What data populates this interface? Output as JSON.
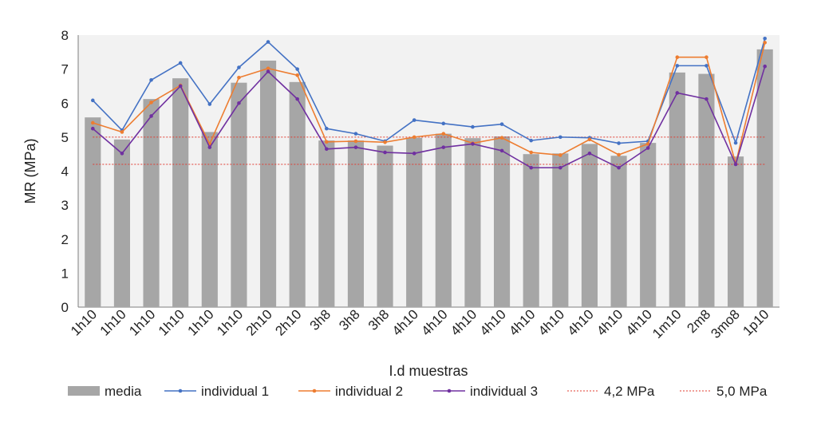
{
  "chart_data": {
    "type": "bar",
    "title": "",
    "xlabel": "I.d  muestras",
    "ylabel": "MR (MPa)",
    "ylim": [
      0,
      8
    ],
    "yticks": [
      0,
      1,
      2,
      3,
      4,
      5,
      6,
      7,
      8
    ],
    "grid": false,
    "legend_position": "bottom",
    "categories": [
      "1h10",
      "1h10",
      "1h10",
      "1h10",
      "1h10",
      "1h10",
      "2h10",
      "2h10",
      "3h8",
      "3h8",
      "3h8",
      "4h10",
      "4h10",
      "4h10",
      "4h10",
      "4h10",
      "4h10",
      "4h10",
      "4h10",
      "4h10",
      "1m10",
      "2m8",
      "3mo8",
      "1p10"
    ],
    "bar_series": {
      "name": "media",
      "color": "#a6a6a6",
      "values": [
        5.58,
        4.93,
        6.12,
        6.73,
        5.15,
        6.6,
        7.25,
        6.62,
        4.9,
        4.9,
        4.75,
        4.98,
        5.1,
        4.97,
        5.02,
        4.5,
        4.52,
        4.8,
        4.45,
        4.83,
        6.9,
        6.86,
        4.43,
        7.58
      ]
    },
    "series": [
      {
        "name": "individual 1",
        "type": "line",
        "color": "#4472c4",
        "values": [
          6.08,
          5.2,
          6.68,
          7.18,
          5.97,
          7.05,
          7.8,
          7.0,
          5.25,
          5.1,
          4.88,
          5.5,
          5.4,
          5.3,
          5.38,
          4.9,
          5.0,
          4.98,
          4.82,
          4.88,
          7.1,
          7.1,
          4.83,
          7.9
        ]
      },
      {
        "name": "individual 2",
        "type": "line",
        "color": "#ed7d31",
        "values": [
          5.42,
          5.15,
          6.02,
          6.52,
          4.8,
          6.75,
          7.02,
          6.82,
          4.86,
          4.88,
          4.85,
          5.0,
          5.1,
          4.82,
          4.98,
          4.55,
          4.47,
          4.93,
          4.48,
          4.8,
          7.35,
          7.35,
          4.22,
          7.78
        ]
      },
      {
        "name": "individual 3",
        "type": "line",
        "color": "#7030a0",
        "values": [
          5.25,
          4.52,
          5.62,
          6.5,
          4.7,
          6.0,
          6.93,
          6.12,
          4.65,
          4.7,
          4.55,
          4.52,
          4.7,
          4.8,
          4.6,
          4.1,
          4.1,
          4.52,
          4.1,
          4.68,
          6.3,
          6.12,
          4.2,
          7.08
        ]
      }
    ],
    "reference_lines": [
      {
        "name": "4,2 MPa",
        "value": 4.2,
        "color": "#e03c31"
      },
      {
        "name": "5,0 MPa",
        "value": 5.0,
        "color": "#e03c31"
      }
    ]
  }
}
